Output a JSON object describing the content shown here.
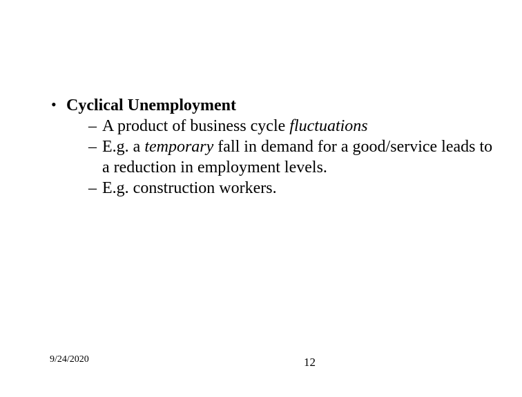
{
  "colors": {
    "background": "#ffffff",
    "text": "#000000"
  },
  "typography": {
    "font_family": "Times New Roman",
    "body_fontsize_pt": 18,
    "footer_date_fontsize_pt": 10,
    "footer_page_fontsize_pt": 13
  },
  "bullet": {
    "title": "Cyclical Unemployment",
    "subitems": [
      {
        "prefix": "A product of business cycle ",
        "emph": "fluctuations",
        "emph_style": "italic",
        "suffix": ""
      },
      {
        "prefix": "E.g. a ",
        "emph": "temporary",
        "emph_style": "italic",
        "suffix": " fall in demand for a good/service leads to a reduction in employment levels."
      },
      {
        "prefix": "E.g. construction workers.",
        "emph": "",
        "emph_style": "",
        "suffix": ""
      }
    ]
  },
  "footer": {
    "date": "9/24/2020",
    "page": "12"
  }
}
